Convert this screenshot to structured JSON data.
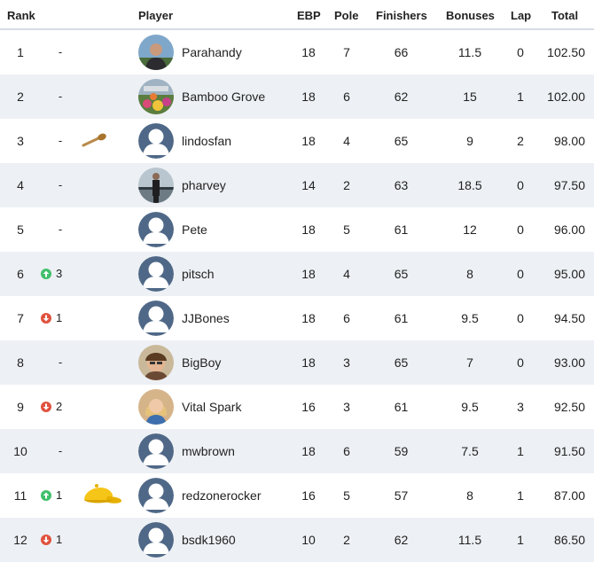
{
  "headers": {
    "rank": "Rank",
    "player": "Player",
    "ebp": "EBP",
    "pole": "Pole",
    "finishers": "Finishers",
    "bonuses": "Bonuses",
    "lap": "Lap",
    "total": "Total"
  },
  "colors": {
    "up": "#3fbf6a",
    "down": "#e0533f",
    "row_alt": "#edf0f4",
    "avatar_default": "#4f6887"
  },
  "rows": [
    {
      "rank": "1",
      "change": "-",
      "change_dir": "none",
      "avatar": "photo-man-dark-shirt",
      "player": "Parahandy",
      "ebp": "18",
      "pole": "7",
      "finishers": "66",
      "bonuses": "11.5",
      "lap": "0",
      "total": "102.50"
    },
    {
      "rank": "2",
      "change": "-",
      "change_dir": "none",
      "avatar": "photo-colorful-garden",
      "player": "Bamboo Grove",
      "ebp": "18",
      "pole": "6",
      "finishers": "62",
      "bonuses": "15",
      "lap": "1",
      "total": "102.00"
    },
    {
      "rank": "3",
      "change": "-",
      "change_dir": "none",
      "badge": "wooden-spoon-icon",
      "avatar": "default-user",
      "player": "lindosfan",
      "ebp": "18",
      "pole": "4",
      "finishers": "65",
      "bonuses": "9",
      "lap": "2",
      "total": "98.00"
    },
    {
      "rank": "4",
      "change": "-",
      "change_dir": "none",
      "avatar": "photo-man-standing",
      "player": "pharvey",
      "ebp": "14",
      "pole": "2",
      "finishers": "63",
      "bonuses": "18.5",
      "lap": "0",
      "total": "97.50"
    },
    {
      "rank": "5",
      "change": "-",
      "change_dir": "none",
      "avatar": "default-user",
      "player": "Pete",
      "ebp": "18",
      "pole": "5",
      "finishers": "61",
      "bonuses": "12",
      "lap": "0",
      "total": "96.00"
    },
    {
      "rank": "6",
      "change": "3",
      "change_dir": "up",
      "avatar": "default-user",
      "player": "pitsch",
      "ebp": "18",
      "pole": "4",
      "finishers": "65",
      "bonuses": "8",
      "lap": "0",
      "total": "95.00"
    },
    {
      "rank": "7",
      "change": "1",
      "change_dir": "down",
      "avatar": "default-user",
      "player": "JJBones",
      "ebp": "18",
      "pole": "6",
      "finishers": "61",
      "bonuses": "9.5",
      "lap": "0",
      "total": "94.50"
    },
    {
      "rank": "8",
      "change": "-",
      "change_dir": "none",
      "avatar": "photo-man-hat",
      "player": "BigBoy",
      "ebp": "18",
      "pole": "3",
      "finishers": "65",
      "bonuses": "7",
      "lap": "0",
      "total": "93.00"
    },
    {
      "rank": "9",
      "change": "2",
      "change_dir": "down",
      "avatar": "photo-woman-blonde",
      "player": "Vital Spark",
      "ebp": "16",
      "pole": "3",
      "finishers": "61",
      "bonuses": "9.5",
      "lap": "3",
      "total": "92.50"
    },
    {
      "rank": "10",
      "change": "-",
      "change_dir": "none",
      "avatar": "default-user",
      "player": "mwbrown",
      "ebp": "18",
      "pole": "6",
      "finishers": "59",
      "bonuses": "7.5",
      "lap": "1",
      "total": "91.50"
    },
    {
      "rank": "11",
      "change": "1",
      "change_dir": "up",
      "badge": "yellow-cap-icon",
      "avatar": "default-user",
      "player": "redzonerocker",
      "ebp": "16",
      "pole": "5",
      "finishers": "57",
      "bonuses": "8",
      "lap": "1",
      "total": "87.00"
    },
    {
      "rank": "12",
      "change": "1",
      "change_dir": "down",
      "avatar": "default-user",
      "player": "bsdk1960",
      "ebp": "10",
      "pole": "2",
      "finishers": "62",
      "bonuses": "11.5",
      "lap": "1",
      "total": "86.50"
    }
  ]
}
